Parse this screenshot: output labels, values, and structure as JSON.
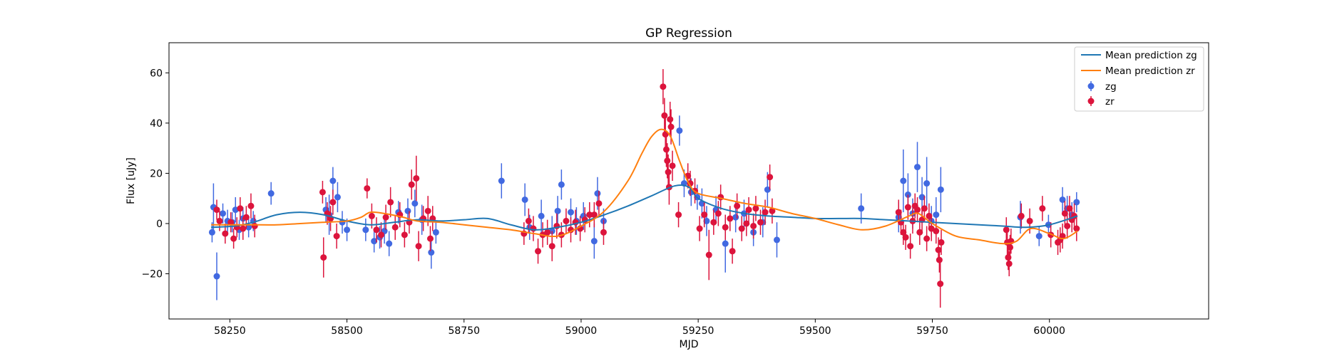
{
  "chart_data": {
    "type": "scatter",
    "title": "GP Regression",
    "xlabel": "MJD",
    "ylabel": "Flux [uJy]",
    "xlim": [
      58120,
      60340
    ],
    "ylim": [
      -38,
      72
    ],
    "xticks": [
      58250,
      58500,
      58750,
      59000,
      59250,
      59500,
      59750,
      60000
    ],
    "yticks": [
      -20,
      0,
      20,
      40,
      60
    ],
    "legend_position": "top-right",
    "colors": {
      "zg": "#4169e1",
      "zr": "#dc143c",
      "mean_zg": "#1f77b4",
      "mean_zr": "#ff7f0e"
    },
    "series": [
      {
        "name": "Mean prediction zg",
        "kind": "line",
        "x": [
          58210,
          58260,
          58300,
          58350,
          58400,
          58450,
          58500,
          58550,
          58600,
          58650,
          58700,
          58750,
          58800,
          58850,
          58900,
          58950,
          59000,
          59050,
          59100,
          59150,
          59200,
          59230,
          59250,
          59300,
          59350,
          59400,
          59450,
          59500,
          59550,
          59600,
          59650,
          59700,
          59750,
          59800,
          59850,
          59900,
          59950,
          60000,
          60060
        ],
        "y": [
          -1.5,
          -1.0,
          0.5,
          3.5,
          4.5,
          3.5,
          1.0,
          -0.5,
          0.5,
          1.5,
          1.0,
          1.5,
          2.0,
          -0.5,
          -2.5,
          -1.5,
          0.5,
          3.5,
          7.0,
          11.0,
          15.0,
          14.5,
          10.0,
          6.0,
          4.0,
          3.0,
          2.5,
          2.0,
          2.0,
          2.0,
          1.5,
          1.0,
          0.5,
          0.0,
          -0.5,
          -1.0,
          -1.5,
          -0.5,
          3.0
        ]
      },
      {
        "name": "Mean prediction zr",
        "kind": "line",
        "x": [
          58210,
          58260,
          58300,
          58350,
          58400,
          58450,
          58500,
          58530,
          58550,
          58580,
          58620,
          58650,
          58700,
          58750,
          58800,
          58850,
          58900,
          58950,
          59000,
          59050,
          59100,
          59130,
          59150,
          59170,
          59190,
          59210,
          59230,
          59250,
          59300,
          59350,
          59400,
          59450,
          59500,
          59550,
          59600,
          59650,
          59700,
          59720,
          59750,
          59800,
          59850,
          59900,
          59930,
          59960,
          60000,
          60030,
          60060
        ],
        "y": [
          -0.5,
          -0.5,
          -0.5,
          -0.5,
          0.0,
          0.5,
          1.0,
          2.5,
          4.5,
          4.0,
          2.5,
          1.0,
          0.5,
          -0.5,
          -1.5,
          -2.5,
          -4.0,
          -5.0,
          -1.0,
          5.0,
          17.0,
          28.0,
          34.5,
          37.5,
          35.0,
          25.0,
          16.0,
          12.0,
          10.0,
          8.0,
          6.5,
          4.0,
          2.0,
          -0.5,
          -2.5,
          -1.0,
          3.0,
          4.0,
          0.0,
          -5.0,
          -6.5,
          -8.0,
          -7.0,
          -2.0,
          -4.0,
          -6.0,
          -3.0
        ]
      },
      {
        "name": "zg",
        "kind": "errorbar",
        "x": [
          58212,
          58215,
          58222,
          58235,
          58245,
          58255,
          58262,
          58270,
          58278,
          58290,
          58300,
          58338,
          58455,
          58462,
          58470,
          58480,
          58490,
          58500,
          58540,
          58558,
          58570,
          58580,
          58590,
          58610,
          58630,
          58645,
          58660,
          58680,
          58690,
          58830,
          58880,
          58890,
          58915,
          58938,
          58950,
          58958,
          58978,
          58990,
          59005,
          59028,
          59035,
          59048,
          59210,
          59220,
          59235,
          59248,
          59258,
          59268,
          59288,
          59308,
          59330,
          59348,
          59368,
          59388,
          59398,
          59418,
          59598,
          59678,
          59688,
          59698,
          59708,
          59718,
          59728,
          59738,
          59748,
          59758,
          59768,
          59938,
          59978,
          59998,
          60028,
          60038,
          60048,
          60058
        ],
        "y": [
          -3.5,
          6.5,
          -21.0,
          4.0,
          1.0,
          0.5,
          5.5,
          -2.5,
          2.0,
          -1.5,
          1.0,
          12.0,
          5.5,
          3.5,
          17.0,
          10.5,
          0.5,
          -2.5,
          -2.5,
          -7.0,
          -5.5,
          -3.0,
          -8.0,
          4.5,
          5.0,
          8.0,
          1.5,
          -11.5,
          -3.5,
          17.0,
          9.5,
          -1.5,
          3.0,
          -3.0,
          5.0,
          15.5,
          4.5,
          1.0,
          3.0,
          -7.0,
          12.0,
          1.0,
          37.0,
          16.0,
          12.5,
          10.5,
          8.0,
          1.0,
          5.5,
          -8.0,
          2.5,
          4.0,
          -3.5,
          0.5,
          13.5,
          -6.5,
          6.0,
          2.5,
          17.0,
          11.5,
          4.0,
          22.5,
          10.5,
          16.0,
          1.0,
          3.5,
          13.5,
          2.5,
          -5.0,
          -0.5,
          9.5,
          6.0,
          3.5,
          8.5
        ],
        "yerr": [
          4,
          9.5,
          9.5,
          4,
          4.5,
          4,
          5,
          4,
          4.5,
          4,
          4,
          4.5,
          5,
          8,
          5.5,
          6,
          4.5,
          4.5,
          4.5,
          4.5,
          4.5,
          5,
          5,
          4.5,
          5,
          5.5,
          6,
          6.5,
          4.5,
          7,
          6.5,
          5,
          6.5,
          6,
          6,
          6,
          5.5,
          5.5,
          5.5,
          7,
          6.5,
          5,
          6,
          5.5,
          5.5,
          5,
          6,
          6,
          5.5,
          11.5,
          6,
          5.5,
          5.5,
          6,
          7,
          7,
          6,
          6,
          12.5,
          8.5,
          6,
          10,
          8,
          10.5,
          6,
          7,
          9,
          6.5,
          4,
          4,
          5,
          5,
          5,
          4
        ]
      },
      {
        "name": "zr",
        "kind": "errorbar",
        "x": [
          58222,
          58228,
          58240,
          58252,
          58258,
          58265,
          58272,
          58278,
          58285,
          58295,
          58303,
          58448,
          58450,
          58458,
          58465,
          58470,
          58478,
          58543,
          58553,
          58563,
          58573,
          58583,
          58593,
          58603,
          58613,
          58623,
          58633,
          58638,
          58648,
          58653,
          58663,
          58673,
          58678,
          58683,
          58878,
          58888,
          58898,
          58908,
          58918,
          58928,
          58938,
          58948,
          58958,
          58968,
          58978,
          58988,
          58998,
          59008,
          59018,
          59028,
          59038,
          59048,
          59175,
          59178,
          59180,
          59182,
          59184,
          59186,
          59188,
          59190,
          59192,
          59195,
          59208,
          59228,
          59233,
          59243,
          59253,
          59263,
          59273,
          59283,
          59293,
          59298,
          59308,
          59318,
          59323,
          59333,
          59343,
          59353,
          59358,
          59368,
          59373,
          59383,
          59393,
          59403,
          59408,
          59678,
          59683,
          59688,
          59693,
          59698,
          59703,
          59708,
          59713,
          59718,
          59723,
          59728,
          59733,
          59738,
          59743,
          59748,
          59758,
          59763,
          59765,
          59767,
          59769,
          59908,
          59910,
          59912,
          59914,
          59916,
          59918,
          59940,
          59958,
          59985,
          60003,
          60018,
          60023,
          60028,
          60033,
          60038,
          60043,
          60048,
          60053,
          60058
        ],
        "y": [
          5.5,
          1.0,
          -4.0,
          0.5,
          -6.0,
          -1.5,
          6.0,
          -2.0,
          2.5,
          7.0,
          -1.0,
          12.5,
          -13.5,
          4.0,
          2.0,
          8.5,
          -5.0,
          14.0,
          3.0,
          -2.5,
          -4.5,
          2.5,
          8.5,
          -1.5,
          3.5,
          -4.5,
          0.5,
          15.5,
          18.0,
          -9.0,
          2.0,
          5.0,
          -6.0,
          2.0,
          -4.0,
          1.0,
          -2.0,
          -11.0,
          -4.5,
          -3.5,
          -9.0,
          -1.0,
          -4.5,
          1.0,
          -2.5,
          0.5,
          -2.0,
          1.5,
          3.5,
          3.5,
          8.0,
          -3.5,
          54.5,
          43.0,
          35.5,
          29.5,
          25.0,
          20.5,
          14.5,
          41.5,
          38.5,
          23.0,
          3.5,
          19.0,
          16.0,
          13.0,
          -2.0,
          3.5,
          -12.5,
          0.5,
          4.0,
          10.5,
          -1.5,
          2.0,
          -11.0,
          7.0,
          -2.0,
          0.0,
          5.5,
          -1.0,
          6.0,
          0.5,
          4.5,
          18.5,
          5.0,
          4.5,
          0.5,
          -3.5,
          -5.5,
          6.5,
          -9.0,
          1.0,
          7.0,
          5.5,
          -3.5,
          1.5,
          6.0,
          -6.0,
          3.0,
          -2.0,
          -3.0,
          -10.5,
          -14.5,
          -24.0,
          -7.5,
          -2.5,
          -7.5,
          -13.5,
          -16.0,
          -9.5,
          -7.0,
          3.0,
          1.0,
          6.0,
          -4.5,
          -7.5,
          -6.5,
          -5.0,
          4.0,
          -1.0,
          6.0,
          1.5,
          3.0,
          -2.0
        ],
        "yerr": [
          4,
          4,
          4,
          4,
          4,
          4,
          4.5,
          4.5,
          4.5,
          5,
          4.5,
          4.5,
          8,
          4.5,
          5,
          5,
          5,
          4,
          5,
          5,
          5,
          5,
          6,
          5,
          5,
          5,
          4.5,
          6,
          9,
          6,
          5,
          6,
          5,
          5,
          4.5,
          5,
          5,
          5,
          5,
          5,
          6,
          5,
          5,
          5,
          5,
          5,
          5,
          5,
          5,
          5,
          5,
          5,
          7,
          7,
          7,
          7,
          7,
          7,
          7,
          7,
          7,
          6,
          5,
          5,
          5,
          5,
          5,
          5,
          10,
          5,
          5,
          5,
          5,
          5,
          5,
          5,
          5,
          5,
          5,
          5,
          5,
          5,
          5,
          5,
          5,
          5,
          5,
          5,
          5,
          5,
          5,
          5,
          5,
          5,
          5,
          5,
          5,
          5,
          5,
          5,
          5,
          5,
          5,
          9.5,
          5,
          5,
          5,
          5,
          5,
          5,
          5,
          5,
          5,
          5,
          5,
          5,
          5,
          5,
          5,
          5,
          5,
          5,
          5,
          5
        ]
      }
    ]
  }
}
